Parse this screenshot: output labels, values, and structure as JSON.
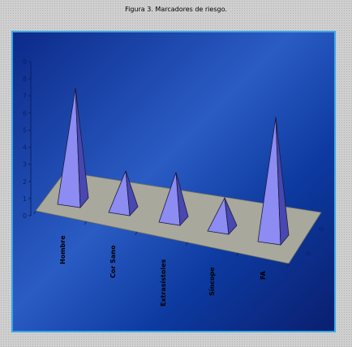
{
  "figure": {
    "title": "Figura 3. Marcadores de riesgo."
  },
  "chart_data": {
    "type": "bar",
    "style": "3d-pyramid",
    "title": "Figura 3. Marcadores de riesgo.",
    "categories": [
      "Hombre",
      "Cor Sano",
      "Extrasístoles",
      "Síncope",
      "FA"
    ],
    "series": [
      {
        "values": [
          7,
          2.5,
          3,
          2,
          7.5
        ]
      }
    ],
    "depth_labels": [
      "0",
      "0"
    ],
    "y_ticks": [
      "0",
      "1",
      "2",
      "3",
      "4",
      "5",
      "6",
      "7",
      "8",
      "9"
    ],
    "ylim": [
      0,
      9
    ],
    "colors": {
      "pyramid_front": "#8c8cf2",
      "pyramid_side": "#4848b0",
      "floor": "#a8a89c",
      "background": "#1a44b0"
    }
  }
}
